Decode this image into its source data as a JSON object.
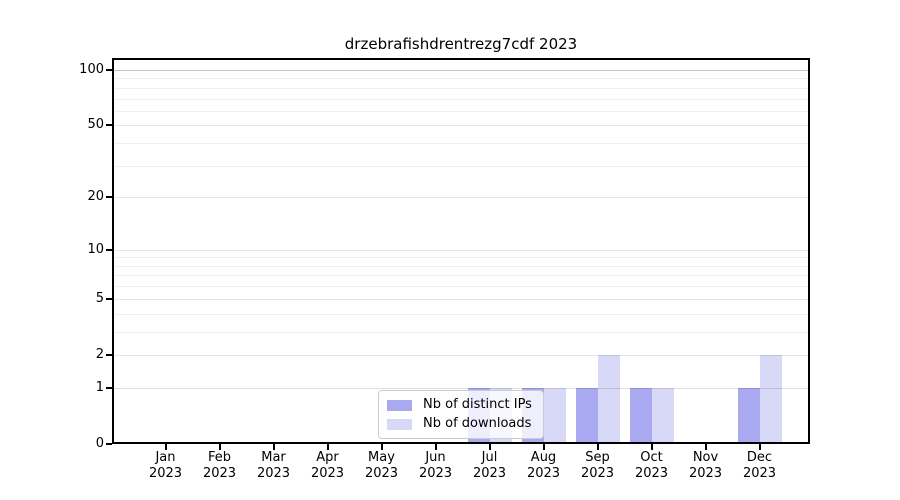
{
  "title": "drzebrafishdrentrezg7cdf 2023",
  "colors": {
    "distinct_ips": "#a9a9f2",
    "downloads": "#d8d8f7",
    "spine": "#000000"
  },
  "legend": {
    "items": [
      {
        "label": "Nb of distinct IPs",
        "color": "#a9a9f2"
      },
      {
        "label": "Nb of downloads",
        "color": "#d8d8f7"
      }
    ]
  },
  "chart_data": {
    "type": "bar",
    "title": "drzebrafishdrentrezg7cdf 2023",
    "categories": [
      "Jan 2023",
      "Feb 2023",
      "Mar 2023",
      "Apr 2023",
      "May 2023",
      "Jun 2023",
      "Jul 2023",
      "Aug 2023",
      "Sep 2023",
      "Oct 2023",
      "Nov 2023",
      "Dec 2023"
    ],
    "x_months": [
      "Jan",
      "Feb",
      "Mar",
      "Apr",
      "May",
      "Jun",
      "Jul",
      "Aug",
      "Sep",
      "Oct",
      "Nov",
      "Dec"
    ],
    "x_year": "2023",
    "series": [
      {
        "name": "Nb of distinct IPs",
        "color": "#a9a9f2",
        "values": [
          0,
          0,
          0,
          0,
          0,
          0,
          1,
          1,
          1,
          1,
          0,
          1
        ]
      },
      {
        "name": "Nb of downloads",
        "color": "#d8d8f7",
        "values": [
          0,
          0,
          0,
          0,
          0,
          0,
          1,
          1,
          2,
          1,
          0,
          2
        ]
      }
    ],
    "xlabel": "",
    "ylabel": "",
    "y_scale": "log1p",
    "y_ticks": [
      0,
      1,
      2,
      5,
      10,
      20,
      50,
      100
    ],
    "y_gridlines": [
      1,
      2,
      3,
      4,
      5,
      6,
      7,
      8,
      9,
      10,
      20,
      30,
      40,
      50,
      60,
      70,
      80,
      90,
      100
    ],
    "ylim": [
      0,
      110
    ],
    "grid": true,
    "legend_position": "lower center"
  }
}
